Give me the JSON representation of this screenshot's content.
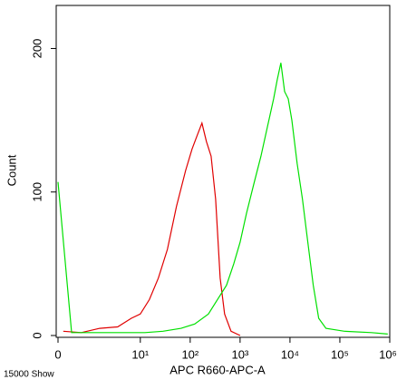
{
  "chart_data": {
    "type": "line",
    "xlabel": "APC R660-APC-A",
    "ylabel": "Count",
    "footnote": "15000 Show",
    "xscale": "biexponential",
    "xlim": [
      0,
      1000000
    ],
    "ylim": [
      0,
      230
    ],
    "xticks": [
      0,
      {
        "value": 10,
        "label": "10¹"
      },
      {
        "value": 100,
        "label": "10²"
      },
      {
        "value": 1000,
        "label": "10³"
      },
      {
        "value": 10000,
        "label": "10⁴"
      },
      {
        "value": 100000,
        "label": "10⁵"
      },
      {
        "value": 1000000,
        "label": "10⁶"
      }
    ],
    "yticks": [
      0,
      100,
      200
    ],
    "series": [
      {
        "color": "#e00000",
        "x": [
          0.11,
          0.58,
          1.5,
          3.5,
          6.6,
          10,
          15.2,
          23,
          35,
          53,
          81,
          109,
          140,
          172,
          212,
          262,
          324,
          398,
          489,
          658,
          1000
        ],
        "values": [
          3,
          2,
          5,
          6,
          12,
          15,
          25,
          40,
          60,
          90,
          115,
          130,
          140,
          148,
          135,
          125,
          95,
          40,
          15,
          3,
          0
        ]
      },
      {
        "color": "#00e000",
        "x": [
          0,
          0.3,
          12.3,
          28.5,
          65.8,
          123,
          231,
          351,
          534,
          747,
          1000,
          1340,
          1870,
          2620,
          3510,
          4700,
          5550,
          6580,
          7790,
          9220,
          10900,
          13900,
          17800,
          22800,
          29300,
          37600,
          52700,
          123000,
          432000,
          912000
        ],
        "values": [
          107,
          2,
          2,
          3,
          5,
          8,
          15,
          25,
          35,
          50,
          65,
          85,
          105,
          125,
          145,
          165,
          178,
          190,
          170,
          165,
          150,
          120,
          95,
          65,
          35,
          12,
          5,
          3,
          2,
          1
        ]
      }
    ]
  }
}
